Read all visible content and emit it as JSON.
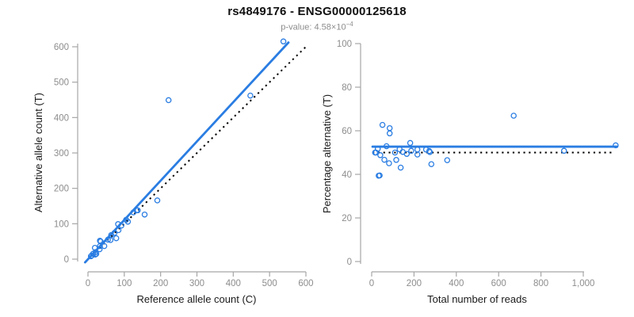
{
  "header": {
    "title": "rs4849176 - ENSG00000125618",
    "pvalue_text": "p-value: 4.58×10",
    "pvalue_exponent": "−4"
  },
  "colors": {
    "accent_blue": "#2a7de2",
    "dotted_black": "#000000",
    "axis_gray": "#a6a6a6",
    "tick_label_gray": "#8d8d8d",
    "axis_title": "#1a1a1a",
    "background": "#ffffff"
  },
  "chart_data": [
    {
      "type": "scatter",
      "name": "allele-counts",
      "xlabel": "Reference allele count (C)",
      "ylabel": "Alternative allele count (T)",
      "xlim": [
        0,
        600
      ],
      "ylim": [
        0,
        600
      ],
      "xticks": [
        0,
        100,
        200,
        300,
        400,
        500,
        600
      ],
      "yticks": [
        0,
        100,
        200,
        300,
        400,
        500,
        600
      ],
      "grid": false,
      "legend": "none",
      "points": [
        [
          8,
          8
        ],
        [
          10,
          10
        ],
        [
          14,
          15
        ],
        [
          19,
          32
        ],
        [
          20,
          13
        ],
        [
          23,
          15
        ],
        [
          21,
          20
        ],
        [
          32,
          28
        ],
        [
          33,
          37
        ],
        [
          33,
          52
        ],
        [
          35,
          50
        ],
        [
          45,
          37
        ],
        [
          55,
          55
        ],
        [
          62,
          54
        ],
        [
          64,
          68
        ],
        [
          73,
          74
        ],
        [
          78,
          59
        ],
        [
          83,
          99
        ],
        [
          84,
          82
        ],
        [
          92,
          95
        ],
        [
          105,
          111
        ],
        [
          110,
          106
        ],
        [
          125,
          132
        ],
        [
          134,
          138
        ],
        [
          137,
          138
        ],
        [
          156,
          126
        ],
        [
          191,
          166
        ],
        [
          222,
          449
        ],
        [
          447,
          462
        ],
        [
          538,
          615
        ]
      ],
      "lines": [
        {
          "name": "identity",
          "style": "dotted",
          "color": "#000000",
          "points": [
            [
              0,
              0
            ],
            [
              605,
              605
            ]
          ]
        },
        {
          "name": "regression",
          "style": "solid",
          "color": "#2a7de2",
          "points": [
            [
              -8,
              -9
            ],
            [
              552,
              612
            ]
          ]
        }
      ]
    },
    {
      "type": "scatter",
      "name": "percentage-vs-reads",
      "xlabel": "Total number of reads",
      "ylabel": "Percentage alternative (T)",
      "xlim": [
        0,
        1160
      ],
      "ylim": [
        0,
        100
      ],
      "xticks": [
        0,
        200,
        400,
        600,
        800,
        1000
      ],
      "xtick_labels": [
        "0",
        "200",
        "400",
        "600",
        "800",
        "1,000"
      ],
      "yticks": [
        0,
        20,
        40,
        60,
        80,
        100
      ],
      "grid": false,
      "legend": "none",
      "points": [
        [
          16,
          50.0
        ],
        [
          20,
          50.0
        ],
        [
          29,
          51.7
        ],
        [
          51,
          62.7
        ],
        [
          33,
          39.4
        ],
        [
          38,
          39.5
        ],
        [
          41,
          48.8
        ],
        [
          60,
          46.7
        ],
        [
          70,
          52.9
        ],
        [
          85,
          61.2
        ],
        [
          85,
          58.8
        ],
        [
          82,
          45.1
        ],
        [
          110,
          50.0
        ],
        [
          116,
          46.6
        ],
        [
          132,
          51.5
        ],
        [
          147,
          50.3
        ],
        [
          137,
          43.1
        ],
        [
          182,
          54.4
        ],
        [
          166,
          49.4
        ],
        [
          187,
          50.8
        ],
        [
          216,
          51.4
        ],
        [
          216,
          49.1
        ],
        [
          257,
          51.4
        ],
        [
          272,
          50.7
        ],
        [
          275,
          50.2
        ],
        [
          282,
          44.7
        ],
        [
          357,
          46.5
        ],
        [
          671,
          66.9
        ],
        [
          909,
          50.8
        ],
        [
          1153,
          53.3
        ]
      ],
      "lines": [
        {
          "name": "expected",
          "style": "dotted",
          "color": "#000000",
          "points": [
            [
              4,
              50
            ],
            [
              1140,
              50
            ]
          ]
        },
        {
          "name": "fit",
          "style": "solid",
          "color": "#2a7de2",
          "points": [
            [
              4,
              52.7
            ],
            [
              1160,
              52.7
            ]
          ]
        }
      ]
    }
  ]
}
